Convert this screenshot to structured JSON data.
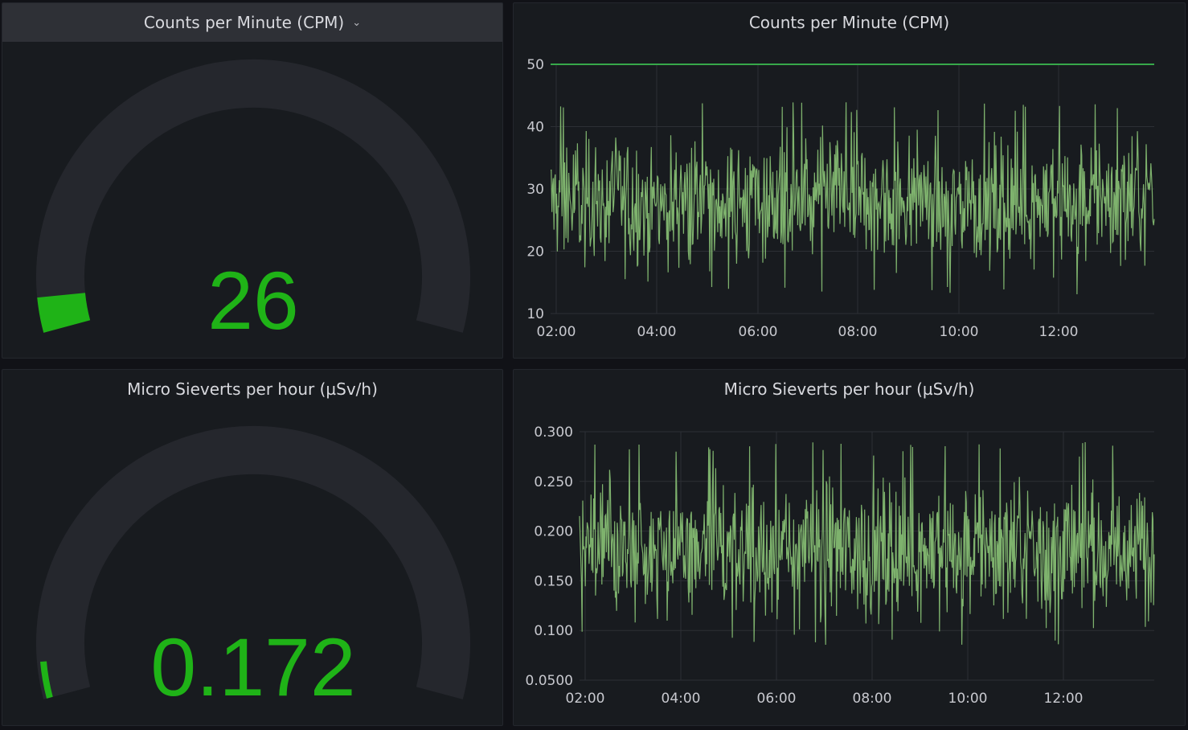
{
  "dashboard": {
    "cpm_gauge": {
      "title": "Counts per Minute (CPM)",
      "value": "26",
      "value_numeric": 26,
      "min": 0,
      "max": 100,
      "color": "#1fb317",
      "track_color": "#25272d",
      "menu_icon": "chevron-down-icon"
    },
    "cpm_timeseries": {
      "title": "Counts per Minute (CPM)"
    },
    "usv_gauge": {
      "title": "Micro Sieverts per hour (µSv/h)",
      "value": "0.172",
      "value_numeric": 0.172,
      "color": "#1fb317",
      "track_color": "#25272d"
    },
    "usv_timeseries": {
      "title": "Micro Sieverts per hour (µSv/h)"
    }
  },
  "chart_data": [
    {
      "type": "line",
      "title": "Counts per Minute (CPM)",
      "x_ticks": [
        "02:00",
        "04:00",
        "06:00",
        "08:00",
        "10:00",
        "12:00"
      ],
      "y_ticks": [
        "10",
        "20",
        "30",
        "40",
        "50"
      ],
      "xlim": [
        "01:59",
        "13:53"
      ],
      "ylim": [
        10,
        50
      ],
      "grid": true,
      "series": [
        {
          "values_description": "noisy signal centred near 28, ranging about 13 to 44",
          "mean": 28,
          "min": 13,
          "max": 44,
          "color": "#7eb26d"
        },
        {
          "constant": 50,
          "color": "#37a84a"
        }
      ]
    },
    {
      "type": "line",
      "title": "Micro Sieverts per hour (µSv/h)",
      "x_ticks": [
        "02:00",
        "04:00",
        "06:00",
        "08:00",
        "10:00",
        "12:00"
      ],
      "y_ticks": [
        "0.0500",
        "0.100",
        "0.150",
        "0.200",
        "0.250",
        "0.300"
      ],
      "xlim": [
        "01:59",
        "13:53"
      ],
      "ylim": [
        0.05,
        0.3
      ],
      "grid": true,
      "series": [
        {
          "mean": 0.18,
          "min": 0.085,
          "max": 0.29,
          "color": "#7eb26d"
        }
      ]
    }
  ]
}
